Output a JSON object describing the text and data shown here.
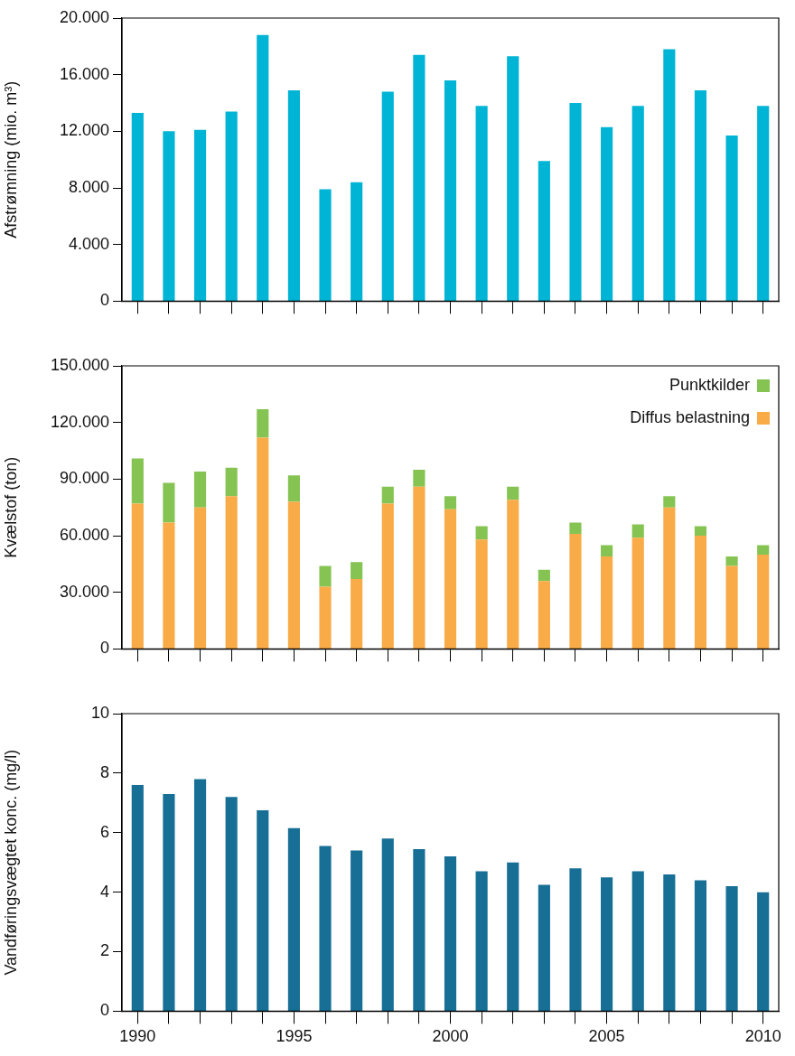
{
  "chart_data": [
    {
      "type": "bar",
      "ylabel": "Afstrømning (mio. m³)",
      "tick_labels": "y",
      "categories": [
        "1990",
        null,
        null,
        null,
        null,
        "1995",
        null,
        null,
        null,
        null,
        "2000",
        null,
        null,
        null,
        null,
        "2005",
        null,
        null,
        null,
        null,
        "2010"
      ],
      "series": [
        {
          "color": "#00b4d5",
          "values": [
            13300,
            12000,
            12100,
            13400,
            18800,
            14900,
            7900,
            8400,
            14800,
            17400,
            15600,
            13800,
            17300,
            9900,
            14000,
            12300,
            13800,
            17800,
            14900,
            11700,
            13800
          ]
        }
      ],
      "ylim": [
        0,
        20000
      ],
      "yticks": [
        {
          "value": 0,
          "label": "0"
        },
        {
          "value": 4000,
          "label": "4.000"
        },
        {
          "value": 8000,
          "label": "8.000"
        },
        {
          "value": 12000,
          "label": "12.000"
        },
        {
          "value": 16000,
          "label": "16.000"
        },
        {
          "value": 20000,
          "label": "20.000"
        }
      ]
    },
    {
      "type": "bar",
      "stacked": true,
      "ylabel": "Kvælstof (ton)",
      "tick_labels": "y",
      "legend": "top right",
      "categories": [
        "1990",
        null,
        null,
        null,
        null,
        "1995",
        null,
        null,
        null,
        null,
        "2000",
        null,
        null,
        null,
        null,
        "2005",
        null,
        null,
        null,
        null,
        "2010"
      ],
      "series": [
        {
          "name": "Diffus belastning",
          "color": "#f9ab48",
          "values": [
            77000,
            67000,
            75000,
            81000,
            112000,
            78000,
            33000,
            37000,
            77000,
            86000,
            74000,
            58000,
            79000,
            36000,
            61000,
            49000,
            59000,
            75000,
            60000,
            44000,
            50000
          ]
        },
        {
          "name": "Punktkilder",
          "color": "#85c452",
          "values": [
            24000,
            21000,
            19000,
            15000,
            15000,
            14000,
            11000,
            9000,
            9000,
            9000,
            7000,
            7000,
            7000,
            6000,
            6000,
            6000,
            7000,
            6000,
            5000,
            5000,
            5000
          ]
        }
      ],
      "ylim": [
        0,
        150000
      ],
      "yticks": [
        {
          "value": 0,
          "label": "0"
        },
        {
          "value": 30000,
          "label": "30.000"
        },
        {
          "value": 60000,
          "label": "60.000"
        },
        {
          "value": 90000,
          "label": "90.000"
        },
        {
          "value": 120000,
          "label": "120.000"
        },
        {
          "value": 150000,
          "label": "150.000"
        }
      ]
    },
    {
      "type": "bar",
      "ylabel": "Vandføringsvægtet konc. (mg/l)",
      "categories": [
        "1990",
        null,
        null,
        null,
        null,
        "1995",
        null,
        null,
        null,
        null,
        "2000",
        null,
        null,
        null,
        null,
        "2005",
        null,
        null,
        null,
        null,
        "2010"
      ],
      "series": [
        {
          "color": "#176f96",
          "values": [
            7.6,
            7.3,
            7.8,
            7.2,
            6.75,
            6.15,
            5.55,
            5.4,
            5.8,
            5.45,
            5.2,
            4.7,
            5.0,
            4.25,
            4.8,
            4.5,
            4.7,
            4.6,
            4.4,
            4.2,
            4.0
          ]
        }
      ],
      "ylim": [
        0,
        10
      ],
      "yticks": [
        0,
        2,
        4,
        6,
        8,
        10
      ]
    }
  ]
}
